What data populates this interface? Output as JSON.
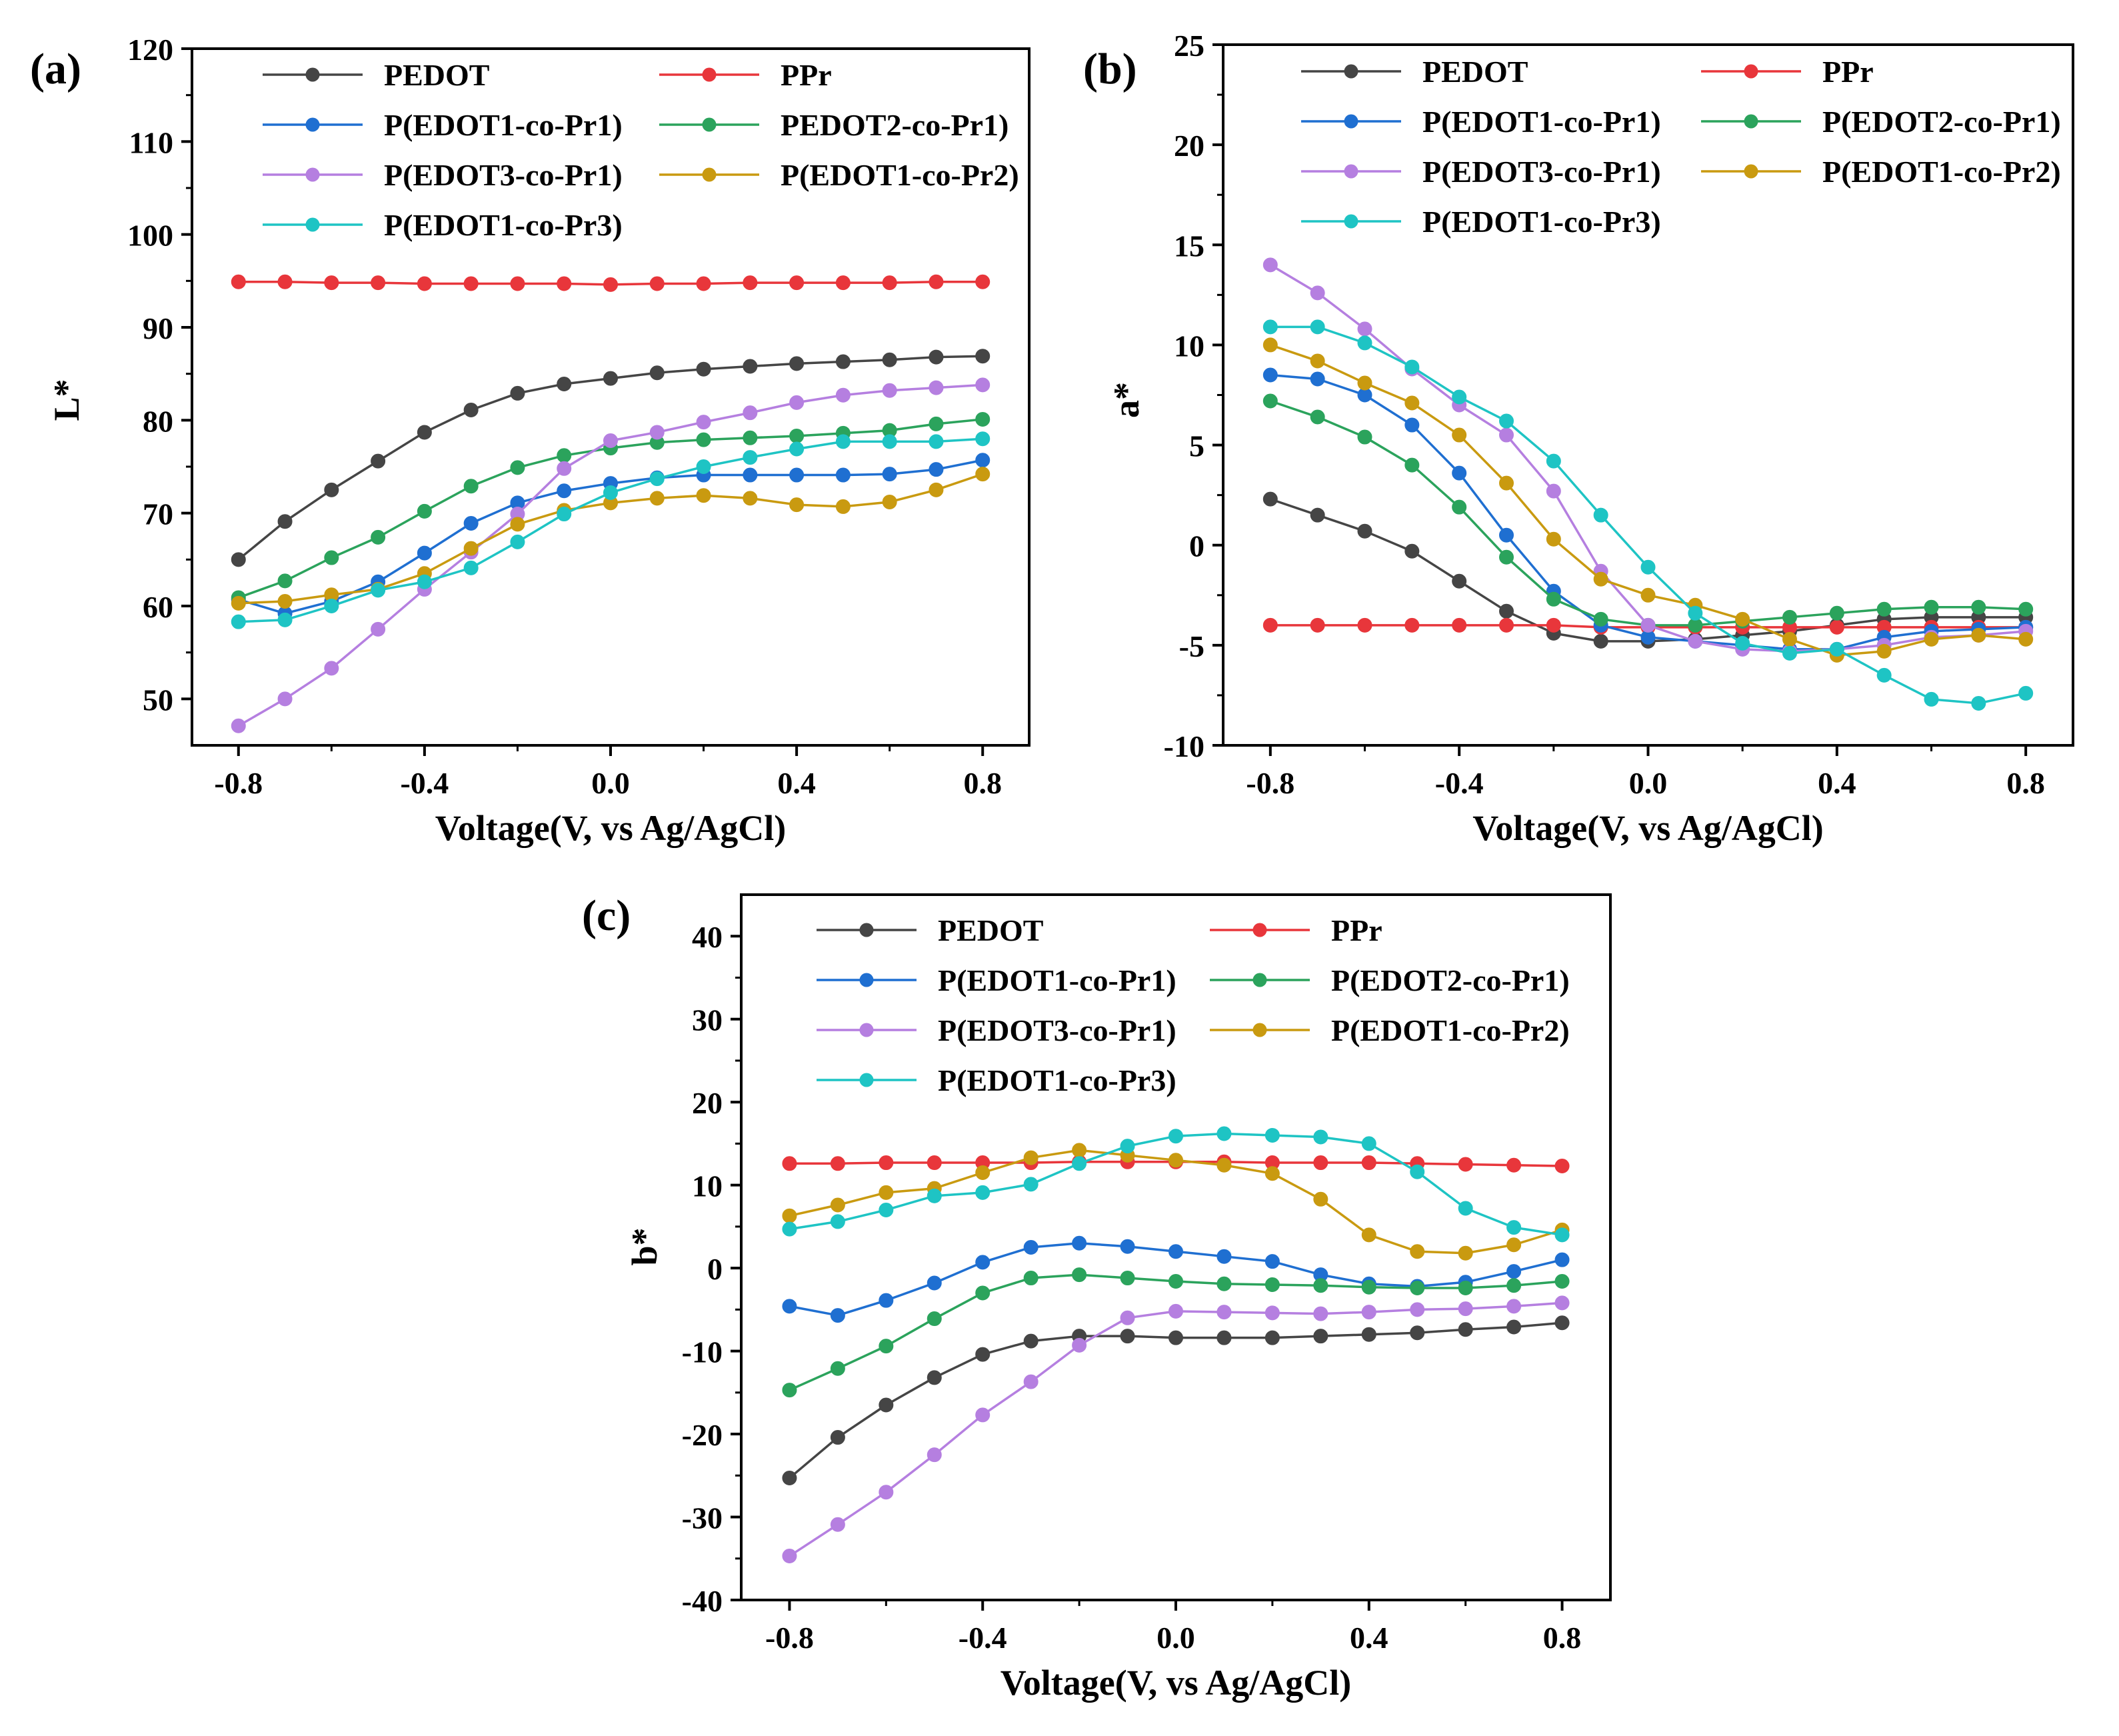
{
  "figure": {
    "x": [
      -0.8,
      -0.7,
      -0.6,
      -0.5,
      -0.4,
      -0.3,
      -0.2,
      -0.1,
      0.0,
      0.1,
      0.2,
      0.3,
      0.4,
      0.5,
      0.6,
      0.7,
      0.8
    ]
  },
  "chart_data": [
    {
      "type": "line",
      "panel_label": "(a)",
      "xlabel": "Voltage(V, vs Ag/AgCl)",
      "ylabel": "L*",
      "xlim": [
        -0.9,
        0.9
      ],
      "ylim": [
        45,
        120
      ],
      "xticks": [
        -0.8,
        -0.4,
        0.0,
        0.4,
        0.8
      ],
      "xtick_labels": [
        "-0.8",
        "-0.4",
        "0.0",
        "0.4",
        "0.8"
      ],
      "yticks": [
        50,
        60,
        70,
        80,
        90,
        100,
        110,
        120
      ],
      "ytick_labels": [
        "50",
        "60",
        "70",
        "80",
        "90",
        "100",
        "110",
        "120"
      ],
      "x": [
        -0.8,
        -0.7,
        -0.6,
        -0.5,
        -0.4,
        -0.3,
        -0.2,
        -0.1,
        0.0,
        0.1,
        0.2,
        0.3,
        0.4,
        0.5,
        0.6,
        0.7,
        0.8
      ],
      "series": [
        {
          "name": "PEDOT",
          "color": "#454545",
          "values": [
            65.0,
            69.1,
            72.5,
            75.6,
            78.7,
            81.1,
            82.9,
            83.9,
            84.5,
            85.1,
            85.5,
            85.8,
            86.1,
            86.3,
            86.5,
            86.8,
            86.9
          ]
        },
        {
          "name": "PPr",
          "color": "#e8363b",
          "values": [
            94.9,
            94.9,
            94.8,
            94.8,
            94.7,
            94.7,
            94.7,
            94.7,
            94.6,
            94.7,
            94.7,
            94.8,
            94.8,
            94.8,
            94.8,
            94.9,
            94.9
          ]
        },
        {
          "name": "P(EDOT1-co-Pr1)",
          "color": "#1f6fd1",
          "values": [
            60.7,
            59.2,
            60.5,
            62.6,
            65.7,
            68.9,
            71.1,
            72.4,
            73.2,
            73.8,
            74.1,
            74.1,
            74.1,
            74.1,
            74.2,
            74.7,
            75.7
          ]
        },
        {
          "name": "PEDOT2-co-Pr1)",
          "color": "#2ba35c",
          "values": [
            60.9,
            62.7,
            65.2,
            67.4,
            70.2,
            72.9,
            74.9,
            76.2,
            77.0,
            77.6,
            77.9,
            78.1,
            78.3,
            78.6,
            78.9,
            79.6,
            80.1
          ]
        },
        {
          "name": "P(EDOT3-co-Pr1)",
          "color": "#b57fe0",
          "values": [
            47.1,
            50.0,
            53.3,
            57.5,
            61.8,
            65.8,
            69.9,
            74.8,
            77.8,
            78.7,
            79.8,
            80.8,
            81.9,
            82.7,
            83.2,
            83.5,
            83.8
          ]
        },
        {
          "name": "P(EDOT1-co-Pr2)",
          "color": "#c99a10",
          "values": [
            60.3,
            60.5,
            61.2,
            61.8,
            63.5,
            66.2,
            68.8,
            70.3,
            71.1,
            71.6,
            71.9,
            71.6,
            70.9,
            70.7,
            71.2,
            72.5,
            74.2
          ]
        },
        {
          "name": "P(EDOT1-co-Pr3)",
          "color": "#1ec4c4",
          "values": [
            58.3,
            58.5,
            60.0,
            61.7,
            62.6,
            64.1,
            66.9,
            69.9,
            72.2,
            73.7,
            75.0,
            76.0,
            76.9,
            77.7,
            77.7,
            77.7,
            78.0
          ]
        }
      ]
    },
    {
      "type": "line",
      "panel_label": "(b)",
      "xlabel": "Voltage(V, vs Ag/AgCl)",
      "ylabel": "a*",
      "xlim": [
        -0.9,
        0.9
      ],
      "ylim": [
        -10,
        25
      ],
      "xticks": [
        -0.8,
        -0.4,
        0.0,
        0.4,
        0.8
      ],
      "xtick_labels": [
        "-0.8",
        "-0.4",
        "0.0",
        "0.4",
        "0.8"
      ],
      "yticks": [
        -10,
        -5,
        0,
        5,
        10,
        15,
        20,
        25
      ],
      "ytick_labels": [
        "-10",
        "-5",
        "0",
        "5",
        "10",
        "15",
        "20",
        "25"
      ],
      "x": [
        -0.8,
        -0.7,
        -0.6,
        -0.5,
        -0.4,
        -0.3,
        -0.2,
        -0.1,
        0.0,
        0.1,
        0.2,
        0.3,
        0.4,
        0.5,
        0.6,
        0.7,
        0.8
      ],
      "series": [
        {
          "name": "PEDOT",
          "color": "#454545",
          "values": [
            2.3,
            1.5,
            0.7,
            -0.3,
            -1.8,
            -3.3,
            -4.4,
            -4.8,
            -4.8,
            -4.7,
            -4.5,
            -4.3,
            -4.0,
            -3.7,
            -3.6,
            -3.6,
            -3.6
          ]
        },
        {
          "name": "PPr",
          "color": "#e8363b",
          "values": [
            -4.0,
            -4.0,
            -4.0,
            -4.0,
            -4.0,
            -4.0,
            -4.0,
            -4.1,
            -4.1,
            -4.1,
            -4.1,
            -4.1,
            -4.1,
            -4.1,
            -4.1,
            -4.1,
            -4.1
          ]
        },
        {
          "name": "P(EDOT1-co-Pr1)",
          "color": "#1f6fd1",
          "values": [
            8.5,
            8.3,
            7.5,
            6.0,
            3.6,
            0.5,
            -2.3,
            -4.0,
            -4.6,
            -4.8,
            -5.0,
            -5.2,
            -5.2,
            -4.6,
            -4.3,
            -4.2,
            -4.1
          ]
        },
        {
          "name": "P(EDOT2-co-Pr1)",
          "color": "#2ba35c",
          "values": [
            7.2,
            6.4,
            5.4,
            4.0,
            1.9,
            -0.6,
            -2.7,
            -3.7,
            -4.0,
            -4.0,
            -3.8,
            -3.6,
            -3.4,
            -3.2,
            -3.1,
            -3.1,
            -3.2
          ]
        },
        {
          "name": "P(EDOT3-co-Pr1)",
          "color": "#b57fe0",
          "values": [
            14.0,
            12.6,
            10.8,
            8.8,
            7.0,
            5.5,
            2.7,
            -1.3,
            -4.0,
            -4.8,
            -5.2,
            -5.3,
            -5.2,
            -5.0,
            -4.6,
            -4.5,
            -4.3
          ]
        },
        {
          "name": "P(EDOT1-co-Pr2)",
          "color": "#c99a10",
          "values": [
            10.0,
            9.2,
            8.1,
            7.1,
            5.5,
            3.1,
            0.3,
            -1.7,
            -2.5,
            -3.0,
            -3.7,
            -4.7,
            -5.5,
            -5.3,
            -4.7,
            -4.5,
            -4.7
          ]
        },
        {
          "name": "P(EDOT1-co-Pr3)",
          "color": "#1ec4c4",
          "values": [
            10.9,
            10.9,
            10.1,
            8.9,
            7.4,
            6.2,
            4.2,
            1.5,
            -1.1,
            -3.4,
            -4.9,
            -5.4,
            -5.2,
            -6.5,
            -7.7,
            -7.9,
            -7.4
          ]
        }
      ]
    },
    {
      "type": "line",
      "panel_label": "(c)",
      "xlabel": "Voltage(V, vs Ag/AgCl)",
      "ylabel": "b*",
      "xlim": [
        -0.9,
        0.9
      ],
      "ylim": [
        -40,
        45
      ],
      "xticks": [
        -0.8,
        -0.4,
        0.0,
        0.4,
        0.8
      ],
      "xtick_labels": [
        "-0.8",
        "-0.4",
        "0.0",
        "0.4",
        "0.8"
      ],
      "yticks": [
        -40,
        -30,
        -20,
        -10,
        0,
        10,
        20,
        30,
        40
      ],
      "ytick_labels": [
        "-40",
        "-30",
        "-20",
        "-10",
        "0",
        "10",
        "20",
        "30",
        "40"
      ],
      "x": [
        -0.8,
        -0.7,
        -0.6,
        -0.5,
        -0.4,
        -0.3,
        -0.2,
        -0.1,
        0.0,
        0.1,
        0.2,
        0.3,
        0.4,
        0.5,
        0.6,
        0.7,
        0.8
      ],
      "series": [
        {
          "name": "PEDOT",
          "color": "#454545",
          "values": [
            -25.3,
            -20.4,
            -16.5,
            -13.2,
            -10.4,
            -8.8,
            -8.2,
            -8.2,
            -8.4,
            -8.4,
            -8.4,
            -8.2,
            -8.0,
            -7.8,
            -7.4,
            -7.1,
            -6.6
          ]
        },
        {
          "name": "PPr",
          "color": "#e8363b",
          "values": [
            12.6,
            12.6,
            12.7,
            12.7,
            12.7,
            12.7,
            12.8,
            12.8,
            12.8,
            12.8,
            12.7,
            12.7,
            12.7,
            12.6,
            12.5,
            12.4,
            12.3
          ]
        },
        {
          "name": "P(EDOT1-co-Pr1)",
          "color": "#1f6fd1",
          "values": [
            -4.6,
            -5.7,
            -3.9,
            -1.8,
            0.7,
            2.5,
            3.0,
            2.6,
            2.0,
            1.4,
            0.8,
            -0.8,
            -1.9,
            -2.2,
            -1.7,
            -0.4,
            1.0
          ]
        },
        {
          "name": "P(EDOT2-co-Pr1)",
          "color": "#2ba35c",
          "values": [
            -14.7,
            -12.1,
            -9.4,
            -6.1,
            -3.0,
            -1.2,
            -0.8,
            -1.2,
            -1.6,
            -1.9,
            -2.0,
            -2.1,
            -2.3,
            -2.4,
            -2.4,
            -2.1,
            -1.6
          ]
        },
        {
          "name": "P(EDOT3-co-Pr1)",
          "color": "#b57fe0",
          "values": [
            -34.7,
            -30.9,
            -27.0,
            -22.5,
            -17.7,
            -13.7,
            -9.3,
            -6.0,
            -5.2,
            -5.3,
            -5.4,
            -5.5,
            -5.3,
            -5.0,
            -4.9,
            -4.6,
            -4.2
          ]
        },
        {
          "name": "P(EDOT1-co-Pr2)",
          "color": "#c99a10",
          "values": [
            6.3,
            7.6,
            9.1,
            9.6,
            11.5,
            13.3,
            14.2,
            13.6,
            13.0,
            12.4,
            11.4,
            8.3,
            4.0,
            2.0,
            1.8,
            2.8,
            4.6
          ]
        },
        {
          "name": "P(EDOT1-co-Pr3)",
          "color": "#1ec4c4",
          "values": [
            4.7,
            5.6,
            7.0,
            8.7,
            9.1,
            10.1,
            12.6,
            14.7,
            15.9,
            16.2,
            16.0,
            15.8,
            15.0,
            11.6,
            7.2,
            4.9,
            4.0
          ]
        }
      ]
    }
  ]
}
